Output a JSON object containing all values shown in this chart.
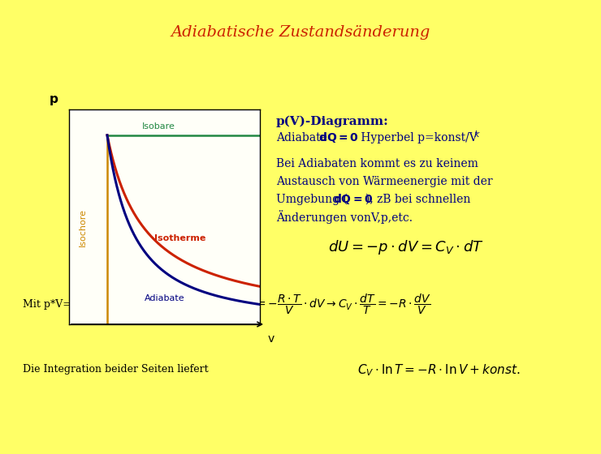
{
  "title": "Adiabatische Zustandsänderung",
  "title_color": "#cc2200",
  "bg_color": "#ffff66",
  "plot_bg": "#fffff8",
  "isobare_color": "#228844",
  "isochore_color": "#cc8800",
  "isotherme_color": "#cc2200",
  "adiabate_color": "#000080",
  "axis_color": "#000000",
  "text_color_dark": "#000080",
  "label_isobare": "Isobare",
  "label_isochore": "Isochore",
  "label_isotherme": "Isotherme",
  "label_adiabate": "Adiabate",
  "label_p": "p",
  "label_v": "v",
  "diagramm_title_line1": "p(V)-Diagramm:",
  "desc_line1": "Bei Adiabaten kommt es zu keinem",
  "desc_line2": "Austausch von Wärmeenergie mit der",
  "desc_line3_a": "Umgebung (",
  "desc_line3_b": "dQ=0",
  "desc_line3_c": "), zB bei schnellen",
  "desc_line4": "Änderungen vonV,p,etc.",
  "formula1": "$dU = -p \\cdot dV = C_V \\cdot dT$",
  "formula2_prefix": "Mit p*V=R*T (n=1) folgt",
  "formula2": "$C_V \\cdot dT = -\\dfrac{R \\cdot T}{V} \\cdot dV \\rightarrow C_V \\cdot \\dfrac{dT}{T} = -R \\cdot \\dfrac{dV}{V}$",
  "formula3_prefix": "Die Integration beider Seiten liefert",
  "formula3": "$C_V \\cdot \\ln T = -R \\cdot \\ln V + konst.$"
}
